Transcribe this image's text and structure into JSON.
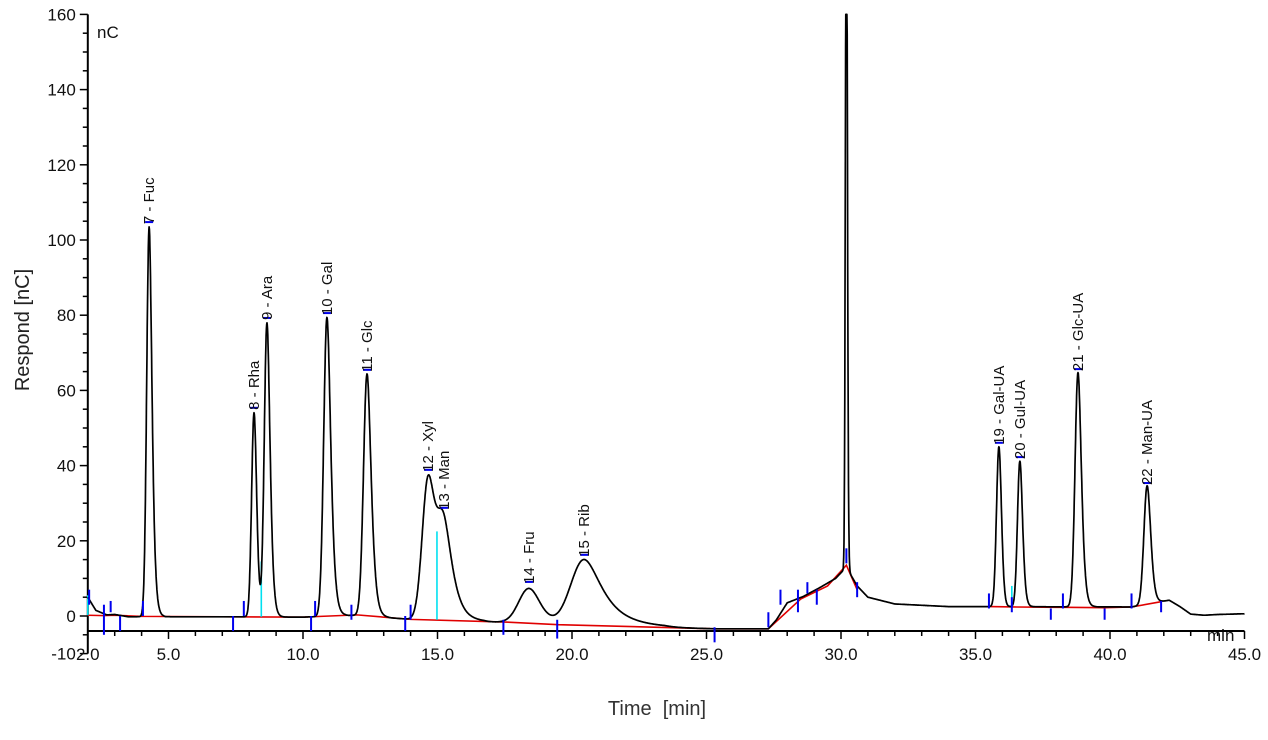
{
  "chart_data": {
    "type": "line",
    "title": "",
    "xlabel": "Time  [min]",
    "ylabel": "Respond [nC]",
    "y_unit_label": "nC",
    "x_unit_label": "min",
    "xlim": [
      2.0,
      45.0
    ],
    "ylim": [
      -10,
      160
    ],
    "x_ticks": [
      "2.0",
      "5.0",
      "10.0",
      "15.0",
      "20.0",
      "25.0",
      "30.0",
      "35.0",
      "40.0",
      "45.0"
    ],
    "y_ticks": [
      "-10",
      "0",
      "20",
      "40",
      "60",
      "80",
      "100",
      "120",
      "140",
      "160"
    ],
    "grid": false,
    "series": [
      {
        "name": "Chromatogram",
        "color": "#000000"
      },
      {
        "name": "Baseline",
        "color": "#e00000"
      }
    ],
    "peaks": [
      {
        "label": "7 - Fuc",
        "time": 4.28,
        "height": 103.7
      },
      {
        "label": "8 - Rha",
        "time": 8.18,
        "height": 54.3
      },
      {
        "label": "9 - Ara",
        "time": 8.66,
        "height": 78.2
      },
      {
        "label": "10 - Gal",
        "time": 10.89,
        "height": 79.5
      },
      {
        "label": "11 - Glc",
        "time": 12.38,
        "height": 64.4
      },
      {
        "label": "12 - Xyl",
        "time": 14.65,
        "height": 37.8
      },
      {
        "label": "13 - Man",
        "time": 15.24,
        "height": 27.7
      },
      {
        "label": "14 - Fru",
        "time": 18.4,
        "height": 8.0
      },
      {
        "label": "15 - Rib",
        "time": 20.45,
        "height": 15.2
      },
      {
        "label": "",
        "time": 30.2,
        "height": 160
      },
      {
        "label": "19 - Gal-UA",
        "time": 35.87,
        "height": 45.0
      },
      {
        "label": "20 - Gul-UA",
        "time": 36.65,
        "height": 41.2
      },
      {
        "label": "21 - Glc-UA",
        "time": 38.81,
        "height": 64.6
      },
      {
        "label": "22 - Man-UA",
        "time": 41.38,
        "height": 34.3
      }
    ]
  },
  "colors": {
    "trace": "#000000",
    "baseline": "#e00000",
    "markers": "#0000ee",
    "separators": "#00e0f0",
    "axis": "#000000"
  }
}
